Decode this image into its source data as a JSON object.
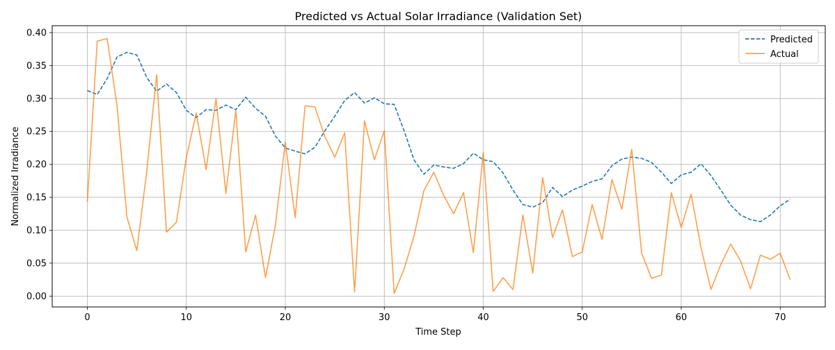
{
  "chart_data": {
    "type": "line",
    "title": "Predicted vs Actual Solar Irradiance (Validation Set)",
    "xlabel": "Time Step",
    "ylabel": "Normalized Irradiance",
    "xlim": [
      -3.55,
      74.55
    ],
    "ylim": [
      -0.0165,
      0.4105
    ],
    "xticks": [
      0,
      10,
      20,
      30,
      40,
      50,
      60,
      70
    ],
    "xtick_labels": [
      "0",
      "10",
      "20",
      "30",
      "40",
      "50",
      "60",
      "70"
    ],
    "yticks": [
      0.0,
      0.05,
      0.1,
      0.15,
      0.2,
      0.25,
      0.3,
      0.35,
      0.4
    ],
    "ytick_labels": [
      "0.00",
      "0.05",
      "0.10",
      "0.15",
      "0.20",
      "0.25",
      "0.30",
      "0.35",
      "0.40"
    ],
    "grid": true,
    "legend_position": "top-right",
    "x": [
      0,
      1,
      2,
      3,
      4,
      5,
      6,
      7,
      8,
      9,
      10,
      11,
      12,
      13,
      14,
      15,
      16,
      17,
      18,
      19,
      20,
      21,
      22,
      23,
      24,
      25,
      26,
      27,
      28,
      29,
      30,
      31,
      32,
      33,
      34,
      35,
      36,
      37,
      38,
      39,
      40,
      41,
      42,
      43,
      44,
      45,
      46,
      47,
      48,
      49,
      50,
      51,
      52,
      53,
      54,
      55,
      56,
      57,
      58,
      59,
      60,
      61,
      62,
      63,
      64,
      65,
      66,
      67,
      68,
      69,
      70,
      71
    ],
    "series": [
      {
        "name": "Predicted",
        "color": "#1f77b4",
        "style": "dashed",
        "values": [
          0.312,
          0.306,
          0.33,
          0.363,
          0.37,
          0.366,
          0.332,
          0.311,
          0.322,
          0.309,
          0.282,
          0.271,
          0.283,
          0.282,
          0.29,
          0.283,
          0.302,
          0.285,
          0.273,
          0.243,
          0.225,
          0.22,
          0.216,
          0.226,
          0.251,
          0.273,
          0.297,
          0.309,
          0.293,
          0.301,
          0.292,
          0.291,
          0.251,
          0.207,
          0.185,
          0.199,
          0.196,
          0.194,
          0.201,
          0.217,
          0.207,
          0.204,
          0.187,
          0.161,
          0.139,
          0.135,
          0.142,
          0.165,
          0.151,
          0.161,
          0.167,
          0.174,
          0.178,
          0.198,
          0.208,
          0.211,
          0.209,
          0.203,
          0.188,
          0.171,
          0.184,
          0.188,
          0.201,
          0.183,
          0.161,
          0.138,
          0.123,
          0.116,
          0.113,
          0.123,
          0.137,
          0.147
        ]
      },
      {
        "name": "Actual",
        "color": "#ff7f0e",
        "style": "solid",
        "values": [
          0.143,
          0.387,
          0.391,
          0.289,
          0.12,
          0.069,
          0.189,
          0.336,
          0.097,
          0.112,
          0.21,
          0.278,
          0.192,
          0.3,
          0.156,
          0.282,
          0.067,
          0.123,
          0.028,
          0.108,
          0.234,
          0.119,
          0.289,
          0.287,
          0.242,
          0.211,
          0.248,
          0.006,
          0.266,
          0.207,
          0.251,
          0.004,
          0.041,
          0.091,
          0.16,
          0.188,
          0.153,
          0.125,
          0.157,
          0.066,
          0.218,
          0.007,
          0.028,
          0.01,
          0.123,
          0.035,
          0.18,
          0.089,
          0.131,
          0.06,
          0.067,
          0.139,
          0.086,
          0.177,
          0.132,
          0.223,
          0.065,
          0.027,
          0.032,
          0.157,
          0.104,
          0.155,
          0.073,
          0.01,
          0.048,
          0.079,
          0.053,
          0.011,
          0.062,
          0.056,
          0.065,
          0.025
        ]
      }
    ]
  }
}
